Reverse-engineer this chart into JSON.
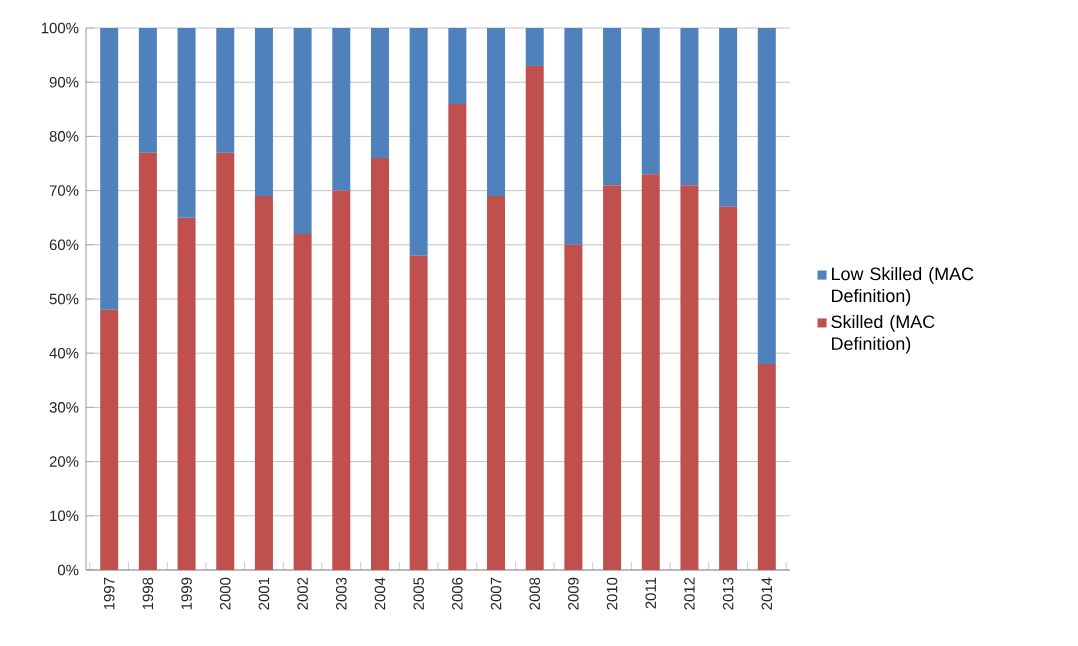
{
  "chart_data": {
    "type": "bar",
    "stacked": true,
    "categories": [
      "1997",
      "1998",
      "1999",
      "2000",
      "2001",
      "2002",
      "2003",
      "2004",
      "2005",
      "2006",
      "2007",
      "2008",
      "2009",
      "2010",
      "2011",
      "2012",
      "2013",
      "2014"
    ],
    "series": [
      {
        "name": "Skilled (MAC Definition)",
        "color": "#c0504d",
        "values": [
          48,
          77,
          65,
          77,
          69,
          62,
          70,
          76,
          58,
          86,
          69,
          93,
          60,
          71,
          73,
          71,
          67,
          38
        ]
      },
      {
        "name": "Low Skilled (MAC Definition)",
        "color": "#4f81bd",
        "values": [
          52,
          23,
          35,
          23,
          31,
          38,
          30,
          24,
          42,
          14,
          31,
          7,
          40,
          29,
          27,
          29,
          33,
          62
        ]
      }
    ],
    "ylim": [
      0,
      100
    ],
    "yticks": [
      {
        "value": 0,
        "label": "0%"
      },
      {
        "value": 10,
        "label": "10%"
      },
      {
        "value": 20,
        "label": "20%"
      },
      {
        "value": 30,
        "label": "30%"
      },
      {
        "value": 40,
        "label": "40%"
      },
      {
        "value": 50,
        "label": "50%"
      },
      {
        "value": 60,
        "label": "60%"
      },
      {
        "value": 70,
        "label": "70%"
      },
      {
        "value": 80,
        "label": "80%"
      },
      {
        "value": 90,
        "label": "90%"
      },
      {
        "value": 100,
        "label": "100%"
      }
    ],
    "grid": "y",
    "legend": "right"
  }
}
